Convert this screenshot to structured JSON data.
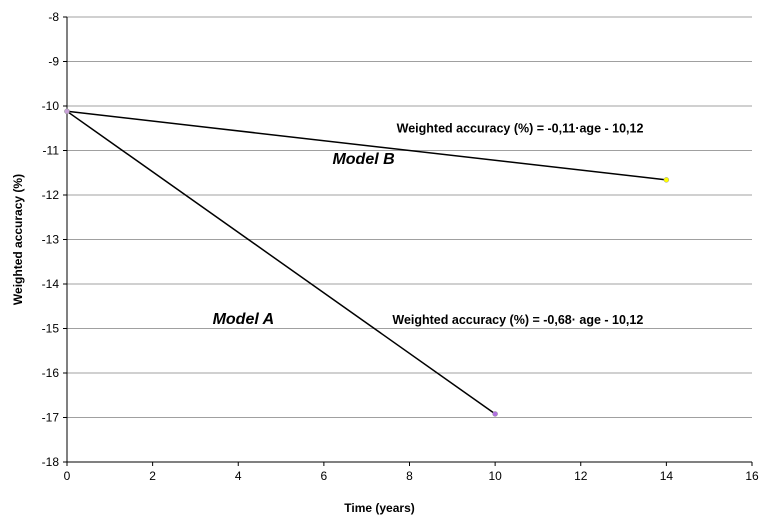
{
  "chart_data": {
    "type": "line",
    "title": "",
    "xlabel": "Time (years)",
    "ylabel": "Weighted accuracy  (%)",
    "xlim": [
      0,
      16
    ],
    "ylim": [
      -18,
      -8
    ],
    "xticks": [
      0,
      2,
      4,
      6,
      8,
      10,
      12,
      14,
      16
    ],
    "yticks": [
      -8,
      -9,
      -10,
      -11,
      -12,
      -13,
      -14,
      -15,
      -16,
      -17,
      -18
    ],
    "grid": {
      "horizontal": true,
      "vertical": false
    },
    "series": [
      {
        "name": "Model A",
        "x": [
          0,
          10
        ],
        "y": [
          -10.12,
          -16.92
        ],
        "end_marker_color": "#b070e0"
      },
      {
        "name": "Model B",
        "x": [
          0,
          14
        ],
        "y": [
          -10.12,
          -11.66
        ],
        "end_marker_color": "#ffff00"
      }
    ],
    "annotations": [
      {
        "text": "Weighted accuracy  (%) = -0,11·age - 10,12",
        "x": 7.7,
        "y": -10.6
      },
      {
        "text": "Model B",
        "x": 6.2,
        "y": -11.3
      },
      {
        "text": "Model A",
        "x": 3.4,
        "y": -14.9
      },
      {
        "text": "Weighted accuracy (%) = -0,68· age - 10,12",
        "x": 7.6,
        "y": -14.9
      }
    ]
  }
}
